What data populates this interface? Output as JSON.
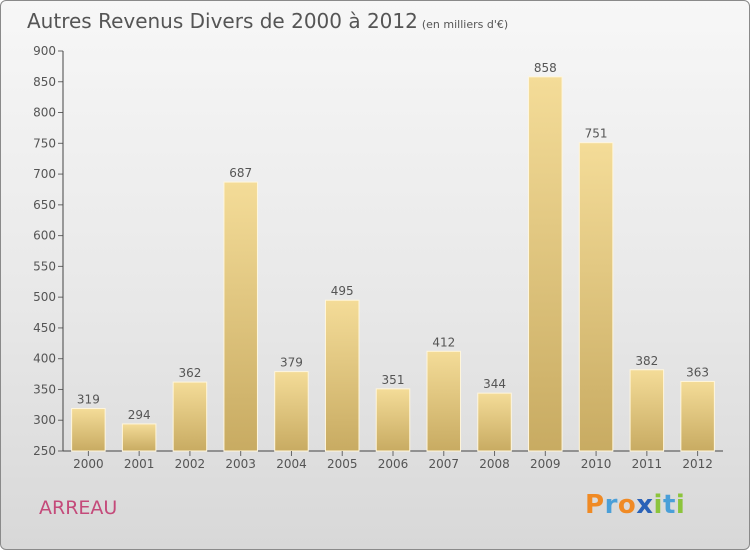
{
  "header": {
    "title": "Autres Revenus Divers de 2000 à 2012",
    "subtitle": "(en milliers d'€)"
  },
  "footer": {
    "town": "ARREAU",
    "logo": [
      "P",
      "r",
      "o",
      "x",
      "i",
      "t",
      "i"
    ]
  },
  "colors": {
    "bar_top": "#f4dc98",
    "bar_bottom": "#c8ab62",
    "bar_edge": "#fff6dc",
    "text": "#555555",
    "town": "#c44a7a",
    "logo": [
      "#f08a24",
      "#4a9fd8",
      "#f08a24",
      "#2a62b8",
      "#8cc43c",
      "#4a9fd8",
      "#8cc43c"
    ]
  },
  "chart_data": {
    "type": "bar",
    "title": "Autres Revenus Divers de 2000 à 2012",
    "subtitle": "(en milliers d'€)",
    "categories": [
      "2000",
      "2001",
      "2002",
      "2003",
      "2004",
      "2005",
      "2006",
      "2007",
      "2008",
      "2009",
      "2010",
      "2011",
      "2012"
    ],
    "values": [
      319,
      294,
      362,
      687,
      379,
      495,
      351,
      412,
      344,
      858,
      751,
      382,
      363
    ],
    "ylim": [
      250,
      900
    ],
    "yticks": [
      250,
      300,
      350,
      400,
      450,
      500,
      550,
      600,
      650,
      700,
      750,
      800,
      850,
      900
    ],
    "grid": false,
    "legend": "none"
  }
}
